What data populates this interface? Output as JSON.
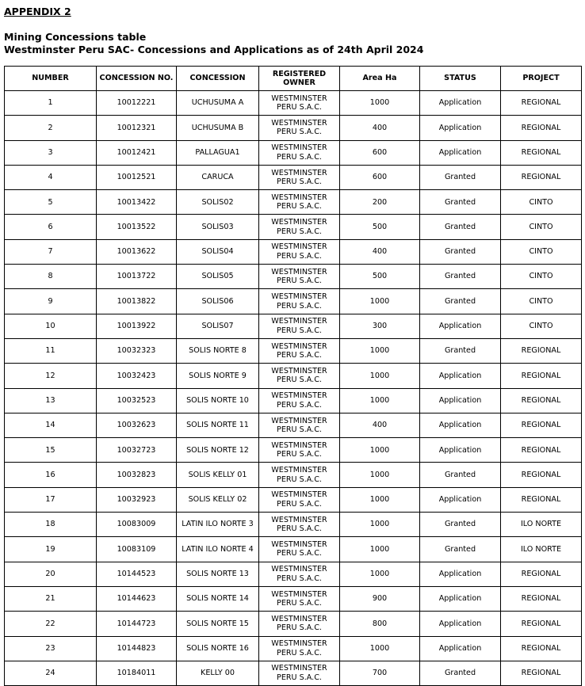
{
  "heading": "APPENDIX 2",
  "title": "Mining Concessions table",
  "subtitle": "Westminster Peru SAC- Concessions and Applications as of 24th April 2024",
  "columns": [
    "NUMBER",
    "CONCESSION NO.",
    "CONCESSION",
    "REGISTERED OWNER",
    "Area Ha",
    "STATUS",
    "PROJECT"
  ],
  "rows": [
    [
      "1",
      "10012221",
      "UCHUSUMA A",
      "WESTMINSTER PERU S.A.C.",
      "1000",
      "Application",
      "REGIONAL"
    ],
    [
      "2",
      "10012321",
      "UCHUSUMA B",
      "WESTMINSTER PERU S.A.C.",
      "400",
      "Application",
      "REGIONAL"
    ],
    [
      "3",
      "10012421",
      "PALLAGUA1",
      "WESTMINSTER PERU S.A.C.",
      "600",
      "Application",
      "REGIONAL"
    ],
    [
      "4",
      "10012521",
      "CARUCA",
      "WESTMINSTER PERU S.A.C.",
      "600",
      "Granted",
      "REGIONAL"
    ],
    [
      "5",
      "10013422",
      "SOLIS02",
      "WESTMINSTER PERU S.A.C.",
      "200",
      "Granted",
      "CINTO"
    ],
    [
      "6",
      "10013522",
      "SOLIS03",
      "WESTMINSTER PERU S.A.C.",
      "500",
      "Granted",
      "CINTO"
    ],
    [
      "7",
      "10013622",
      "SOLIS04",
      "WESTMINSTER PERU S.A.C.",
      "400",
      "Granted",
      "CINTO"
    ],
    [
      "8",
      "10013722",
      "SOLIS05",
      "WESTMINSTER PERU S.A.C.",
      "500",
      "Granted",
      "CINTO"
    ],
    [
      "9",
      "10013822",
      "SOLIS06",
      "WESTMINSTER PERU S.A.C.",
      "1000",
      "Granted",
      "CINTO"
    ],
    [
      "10",
      "10013922",
      "SOLIS07",
      "WESTMINSTER PERU S.A.C.",
      "300",
      "Application",
      "CINTO"
    ],
    [
      "11",
      "10032323",
      "SOLIS NORTE 8",
      "WESTMINSTER PERU S.A.C.",
      "1000",
      "Granted",
      "REGIONAL"
    ],
    [
      "12",
      "10032423",
      "SOLIS NORTE 9",
      "WESTMINSTER PERU S.A.C.",
      "1000",
      "Application",
      "REGIONAL"
    ],
    [
      "13",
      "10032523",
      "SOLIS NORTE 10",
      "WESTMINSTER PERU S.A.C.",
      "1000",
      "Application",
      "REGIONAL"
    ],
    [
      "14",
      "10032623",
      "SOLIS NORTE 11",
      "WESTMINSTER PERU S.A.C.",
      "400",
      "Application",
      "REGIONAL"
    ],
    [
      "15",
      "10032723",
      "SOLIS NORTE 12",
      "WESTMINSTER PERU S.A.C.",
      "1000",
      "Application",
      "REGIONAL"
    ],
    [
      "16",
      "10032823",
      "SOLIS KELLY 01",
      "WESTMINSTER PERU S.A.C.",
      "1000",
      "Granted",
      "REGIONAL"
    ],
    [
      "17",
      "10032923",
      "SOLIS KELLY 02",
      "WESTMINSTER PERU S.A.C.",
      "1000",
      "Application",
      "REGIONAL"
    ],
    [
      "18",
      "10083009",
      "LATIN ILO NORTE 3",
      "WESTMINSTER PERU S.A.C.",
      "1000",
      "Granted",
      "ILO NORTE"
    ],
    [
      "19",
      "10083109",
      "LATIN ILO NORTE 4",
      "WESTMINSTER PERU S.A.C.",
      "1000",
      "Granted",
      "ILO NORTE"
    ],
    [
      "20",
      "10144523",
      "SOLIS NORTE 13",
      "WESTMINSTER PERU S.A.C.",
      "1000",
      "Application",
      "REGIONAL"
    ],
    [
      "21",
      "10144623",
      "SOLIS NORTE 14",
      "WESTMINSTER PERU S.A.C.",
      "900",
      "Application",
      "REGIONAL"
    ],
    [
      "22",
      "10144723",
      "SOLIS NORTE 15",
      "WESTMINSTER PERU S.A.C.",
      "800",
      "Application",
      "REGIONAL"
    ],
    [
      "23",
      "10144823",
      "SOLIS NORTE 16",
      "WESTMINSTER PERU S.A.C.",
      "1000",
      "Application",
      "REGIONAL"
    ],
    [
      "24",
      "10184011",
      "KELLY 00",
      "WESTMINSTER PERU S.A.C.",
      "700",
      "Granted",
      "REGIONAL"
    ]
  ]
}
